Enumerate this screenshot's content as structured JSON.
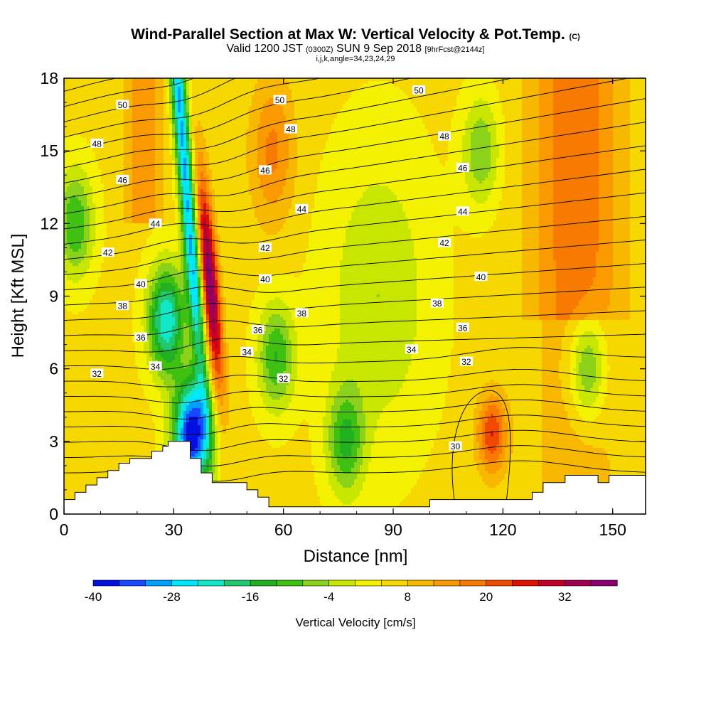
{
  "title": {
    "main": "Wind-Parallel Section at Max W: Vertical Velocity & Pot.Temp.",
    "main_tag": "(C)",
    "valid_prefix": "Valid 1200 JST",
    "valid_utc": "(0300Z)",
    "valid_date": "SUN 9 Sep 2018",
    "forecast": "[9hrFcst@2144z]",
    "indices": "i,j,k,angle=34,23,24,29"
  },
  "chart_data": {
    "type": "heatmap",
    "xlabel": "Distance [nm]",
    "ylabel": "Height [Kft MSL]",
    "xlim": [
      0,
      159
    ],
    "ylim": [
      0,
      18
    ],
    "x_ticks": [
      0,
      30,
      60,
      90,
      120,
      150
    ],
    "y_ticks": [
      0,
      3,
      6,
      9,
      12,
      15,
      18
    ],
    "colorbar": {
      "label": "Vertical Velocity [cm/s]",
      "tick_labels": [
        "-40",
        "-28",
        "-16",
        "-4",
        "8",
        "20",
        "32"
      ],
      "levels": [
        -40,
        -36,
        -32,
        -28,
        -24,
        -20,
        -16,
        -12,
        -8,
        -4,
        0,
        4,
        8,
        12,
        16,
        20,
        24,
        28,
        32,
        36,
        40
      ],
      "colors": [
        "#0010e0",
        "#1848ff",
        "#00a0ff",
        "#00e8ff",
        "#10e8c8",
        "#20c870",
        "#20b020",
        "#40c010",
        "#8cd21a",
        "#c8e600",
        "#f4f200",
        "#f6d800",
        "#f8b800",
        "#fa9a00",
        "#f87a00",
        "#f04a00",
        "#e01000",
        "#c00028",
        "#a00050",
        "#8a0070"
      ]
    },
    "vertical_velocity_features": [
      {
        "kind": "updraft",
        "x": 36,
        "y": 9.5,
        "peak_cm_s": 36
      },
      {
        "kind": "updraft",
        "x": 117,
        "y": 3.3,
        "peak_cm_s": 24
      },
      {
        "kind": "downdraft",
        "x": 40,
        "y": 17,
        "peak_cm_s": -40
      },
      {
        "kind": "downdraft",
        "x": 35,
        "y": 3.3,
        "peak_cm_s": -40
      },
      {
        "kind": "downdraft",
        "x": 28,
        "y": 8,
        "peak_cm_s": -24
      },
      {
        "kind": "downdraft",
        "x": 58,
        "y": 6.5,
        "peak_cm_s": -12
      },
      {
        "kind": "downdraft",
        "x": 77,
        "y": 3,
        "peak_cm_s": -12
      },
      {
        "kind": "downdraft",
        "x": 143,
        "y": 6,
        "peak_cm_s": -12
      },
      {
        "kind": "downdraft",
        "x": 3,
        "y": 12,
        "peak_cm_s": -12
      },
      {
        "kind": "downdraft",
        "x": 114,
        "y": 15,
        "peak_cm_s": -8
      }
    ],
    "theta_contour_labels": [
      {
        "text": "50",
        "x": 16,
        "y": 16.9
      },
      {
        "text": "50",
        "x": 59,
        "y": 17.1
      },
      {
        "text": "50",
        "x": 97,
        "y": 17.5
      },
      {
        "text": "48",
        "x": 9,
        "y": 15.3
      },
      {
        "text": "48",
        "x": 62,
        "y": 15.9
      },
      {
        "text": "48",
        "x": 104,
        "y": 15.6
      },
      {
        "text": "46",
        "x": 16,
        "y": 13.8
      },
      {
        "text": "46",
        "x": 55,
        "y": 14.2
      },
      {
        "text": "46",
        "x": 109,
        "y": 14.3
      },
      {
        "text": "44",
        "x": 25,
        "y": 12.0
      },
      {
        "text": "44",
        "x": 65,
        "y": 12.6
      },
      {
        "text": "44",
        "x": 109,
        "y": 12.5
      },
      {
        "text": "42",
        "x": 12,
        "y": 10.8
      },
      {
        "text": "42",
        "x": 55,
        "y": 11.0
      },
      {
        "text": "42",
        "x": 104,
        "y": 11.2
      },
      {
        "text": "40",
        "x": 21,
        "y": 9.5
      },
      {
        "text": "40",
        "x": 55,
        "y": 9.7
      },
      {
        "text": "40",
        "x": 114,
        "y": 9.8
      },
      {
        "text": "38",
        "x": 16,
        "y": 8.6
      },
      {
        "text": "38",
        "x": 65,
        "y": 8.3
      },
      {
        "text": "38",
        "x": 102,
        "y": 8.7
      },
      {
        "text": "36",
        "x": 21,
        "y": 7.3
      },
      {
        "text": "36",
        "x": 53,
        "y": 7.6
      },
      {
        "text": "36",
        "x": 109,
        "y": 7.7
      },
      {
        "text": "34",
        "x": 25,
        "y": 6.1
      },
      {
        "text": "34",
        "x": 50,
        "y": 6.7
      },
      {
        "text": "34",
        "x": 95,
        "y": 6.8
      },
      {
        "text": "32",
        "x": 9,
        "y": 5.8
      },
      {
        "text": "32",
        "x": 60,
        "y": 5.6
      },
      {
        "text": "32",
        "x": 110,
        "y": 6.3
      },
      {
        "text": "30",
        "x": 107,
        "y": 2.8
      }
    ],
    "terrain": [
      [
        0,
        0.6
      ],
      [
        3,
        0.6
      ],
      [
        3,
        0.9
      ],
      [
        6,
        0.9
      ],
      [
        6,
        1.2
      ],
      [
        9,
        1.2
      ],
      [
        9,
        1.5
      ],
      [
        12,
        1.5
      ],
      [
        12,
        1.8
      ],
      [
        15,
        1.8
      ],
      [
        15,
        2.1
      ],
      [
        18,
        2.1
      ],
      [
        18,
        2.3
      ],
      [
        24,
        2.3
      ],
      [
        24,
        2.6
      ],
      [
        27,
        2.6
      ],
      [
        27,
        2.8
      ],
      [
        28.5,
        2.8
      ],
      [
        28.5,
        3.0
      ],
      [
        34.5,
        3.0
      ],
      [
        34.5,
        2.3
      ],
      [
        37.5,
        2.3
      ],
      [
        37.5,
        1.7
      ],
      [
        40.5,
        1.7
      ],
      [
        40.5,
        1.3
      ],
      [
        50,
        1.3
      ],
      [
        50,
        1.0
      ],
      [
        53,
        1.0
      ],
      [
        53,
        0.7
      ],
      [
        56,
        0.7
      ],
      [
        56,
        0.3
      ],
      [
        100,
        0.3
      ],
      [
        100,
        0.6
      ],
      [
        128,
        0.6
      ],
      [
        128,
        0.9
      ],
      [
        131,
        0.9
      ],
      [
        131,
        1.3
      ],
      [
        137,
        1.3
      ],
      [
        137,
        1.6
      ],
      [
        146,
        1.6
      ],
      [
        146,
        1.3
      ],
      [
        149,
        1.3
      ],
      [
        149,
        1.6
      ],
      [
        159,
        1.6
      ]
    ]
  }
}
